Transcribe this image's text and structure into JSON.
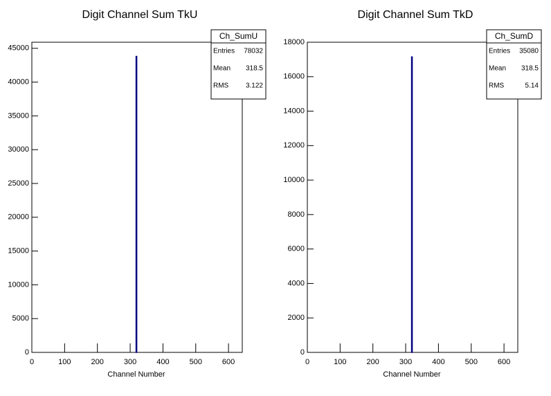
{
  "chart_data": [
    {
      "type": "histogram",
      "title": "Digit Channel Sum TkU",
      "x_label": "Channel Number",
      "bins": [
        318,
        319
      ],
      "counts": [
        43800
      ],
      "color": "#000080",
      "xlim": [
        0,
        642
      ],
      "xticks": [
        0,
        100,
        200,
        300,
        400,
        500,
        600
      ],
      "ylim": [
        0,
        45900
      ],
      "yticks": [
        0,
        5000,
        10000,
        15000,
        20000,
        25000,
        30000,
        35000,
        40000,
        45000
      ],
      "stats": {
        "name": "Ch_SumU",
        "rows": [
          {
            "label": "Entries",
            "value": 78032
          },
          {
            "label": "Mean",
            "value": 318.5
          },
          {
            "label": "RMS",
            "value": 3.122
          }
        ]
      }
    },
    {
      "type": "histogram",
      "title": "Digit Channel Sum TkD",
      "x_label": "Channel Number",
      "bins": [
        318,
        319
      ],
      "counts": [
        17150
      ],
      "color": "#000080",
      "xlim": [
        0,
        642
      ],
      "xticks": [
        0,
        100,
        200,
        300,
        400,
        500,
        600
      ],
      "ylim": [
        0,
        18000
      ],
      "yticks": [
        0,
        2000,
        4000,
        6000,
        8000,
        10000,
        12000,
        14000,
        16000,
        18000
      ],
      "stats": {
        "name": "Ch_SumD",
        "rows": [
          {
            "label": "Entries",
            "value": 35080
          },
          {
            "label": "Mean",
            "value": 318.5
          },
          {
            "label": "RMS",
            "value": 5.14
          }
        ]
      }
    }
  ]
}
